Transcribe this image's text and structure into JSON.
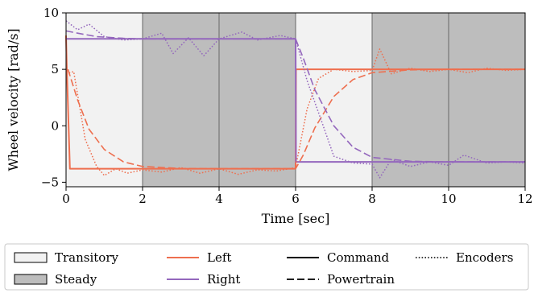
{
  "chart_data": {
    "type": "line",
    "xlabel": "Time [sec]",
    "ylabel": "Wheel velocity [rad/s]",
    "xlim": [
      0,
      12
    ],
    "ylim": [
      -5.4,
      10
    ],
    "xticks": [
      0,
      2,
      4,
      6,
      8,
      10,
      12
    ],
    "xtick_labels": [
      "0",
      "2",
      "4",
      "6",
      "8",
      "10",
      "12"
    ],
    "yticks": [
      -5,
      0,
      5,
      10
    ],
    "ytick_labels": [
      "−5",
      "0",
      "5",
      "10"
    ],
    "grid": false,
    "legend_placement": "bottom",
    "regions": [
      {
        "kind": "transitory",
        "x": [
          0,
          2
        ]
      },
      {
        "kind": "steady",
        "x": [
          2,
          6
        ]
      },
      {
        "kind": "transitory",
        "x": [
          6,
          8
        ]
      },
      {
        "kind": "steady",
        "x": [
          8,
          12
        ]
      }
    ],
    "region_dividers": [
      2,
      4,
      6,
      8,
      10
    ],
    "colors": {
      "left": "#ee6f4f",
      "right": "#9467bd",
      "transitory": "#f2f2f2",
      "steady": "#bdbdbd"
    },
    "series": [
      {
        "name": "Left",
        "source": "Command",
        "x": [
          0,
          0.02,
          0.1,
          6.0,
          6.01,
          12
        ],
        "y": [
          8.0,
          5.0,
          -3.8,
          -3.8,
          5.0,
          5.0
        ]
      },
      {
        "name": "Right",
        "source": "Command",
        "x": [
          0,
          6.0,
          6.01,
          12
        ],
        "y": [
          7.7,
          7.7,
          -3.2,
          -3.2
        ]
      },
      {
        "name": "Left",
        "source": "Powertrain",
        "x": [
          0.05,
          0.3,
          0.6,
          1.0,
          1.5,
          2.0,
          3.0,
          4.0,
          5.0,
          6.0,
          6.2,
          6.5,
          7.0,
          7.5,
          8.0,
          9.0,
          10.0,
          12.0
        ],
        "y": [
          5.0,
          2.3,
          -0.3,
          -2.1,
          -3.2,
          -3.6,
          -3.78,
          -3.8,
          -3.8,
          -3.8,
          -2.6,
          -0.2,
          2.6,
          4.1,
          4.7,
          4.95,
          5.0,
          5.0
        ]
      },
      {
        "name": "Right",
        "source": "Powertrain",
        "x": [
          0,
          0.3,
          0.8,
          1.5,
          2.0,
          3.0,
          4.0,
          5.0,
          6.0,
          6.2,
          6.5,
          7.0,
          7.5,
          8.0,
          9.0,
          10.0,
          12.0
        ],
        "y": [
          8.4,
          8.2,
          7.9,
          7.75,
          7.7,
          7.7,
          7.7,
          7.7,
          7.7,
          6.0,
          3.2,
          0.0,
          -1.9,
          -2.8,
          -3.15,
          -3.2,
          -3.2
        ]
      },
      {
        "name": "Left",
        "source": "Encoders",
        "x": [
          0,
          0.2,
          0.5,
          0.8,
          1.0,
          1.3,
          1.6,
          2.0,
          2.5,
          3.0,
          3.5,
          4.0,
          4.5,
          5.0,
          5.5,
          6.0,
          6.3,
          6.6,
          7.0,
          7.5,
          8.0,
          8.2,
          8.5,
          9.0,
          9.5,
          10.0,
          10.5,
          11.0,
          11.5,
          12.0
        ],
        "y": [
          4.6,
          4.8,
          -1.2,
          -3.6,
          -4.4,
          -3.8,
          -4.2,
          -3.9,
          -4.1,
          -3.7,
          -4.2,
          -3.8,
          -4.3,
          -3.9,
          -4.0,
          -3.7,
          1.5,
          4.2,
          5.0,
          4.8,
          4.9,
          6.8,
          4.6,
          5.1,
          4.8,
          5.0,
          4.7,
          5.1,
          4.9,
          5.0
        ]
      },
      {
        "name": "Right",
        "source": "Encoders",
        "x": [
          0,
          0.3,
          0.6,
          1.0,
          1.5,
          2.0,
          2.5,
          2.8,
          3.2,
          3.6,
          4.0,
          4.6,
          5.0,
          5.6,
          6.0,
          6.3,
          6.7,
          7.0,
          7.5,
          8.0,
          8.2,
          8.5,
          9.0,
          9.5,
          10.0,
          10.4,
          11.0,
          11.5,
          12.0
        ],
        "y": [
          9.3,
          8.5,
          9.0,
          7.9,
          7.6,
          7.7,
          8.2,
          6.4,
          7.8,
          6.2,
          7.7,
          8.3,
          7.6,
          8.0,
          7.7,
          4.0,
          0.2,
          -2.7,
          -3.3,
          -3.4,
          -4.6,
          -3.0,
          -3.6,
          -3.2,
          -3.5,
          -2.6,
          -3.3,
          -3.2,
          -3.3
        ]
      }
    ],
    "legend": [
      {
        "kind": "box",
        "style": "transitory",
        "label": "Transitory"
      },
      {
        "kind": "box",
        "style": "steady",
        "label": "Steady"
      },
      {
        "kind": "line",
        "style": "left",
        "label": "Left"
      },
      {
        "kind": "line",
        "style": "right",
        "label": "Right"
      },
      {
        "kind": "line",
        "style": "solid",
        "label": "Command"
      },
      {
        "kind": "line",
        "style": "dashed",
        "label": "Powertrain"
      },
      {
        "kind": "line",
        "style": "dotted",
        "label": "Encoders"
      }
    ]
  }
}
